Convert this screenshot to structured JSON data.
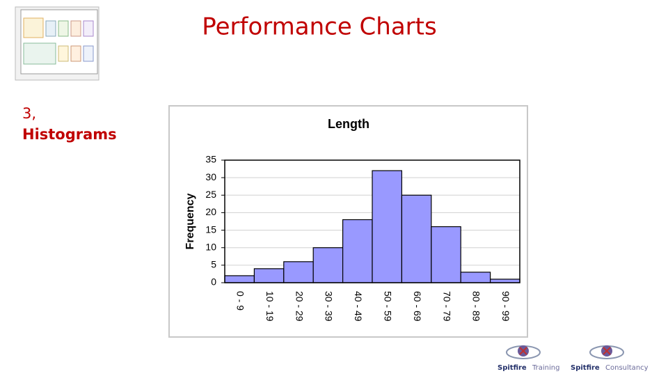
{
  "header": {
    "title": "Performance Charts"
  },
  "sidebar": {
    "section_number": "3,",
    "section_title": "Histograms"
  },
  "logos": [
    {
      "brand": "Spitfire",
      "suffix": "Training"
    },
    {
      "brand": "Spitfire",
      "suffix": "Consultancy"
    }
  ],
  "chart_data": {
    "type": "bar",
    "title": "Length",
    "y_label": "Frequency",
    "categories": [
      "0 - 9",
      "10 - 19",
      "20 - 29",
      "30 - 39",
      "40 - 49",
      "50 - 59",
      "60 - 69",
      "70 - 79",
      "80 - 89",
      "90 - 99"
    ],
    "values": [
      2,
      4,
      6,
      10,
      18,
      32,
      25,
      16,
      3,
      1
    ],
    "color": "#9999ff",
    "ylim": [
      0,
      35
    ],
    "yticks": [
      0,
      5,
      10,
      15,
      20,
      25,
      30,
      35
    ],
    "grid": true
  }
}
